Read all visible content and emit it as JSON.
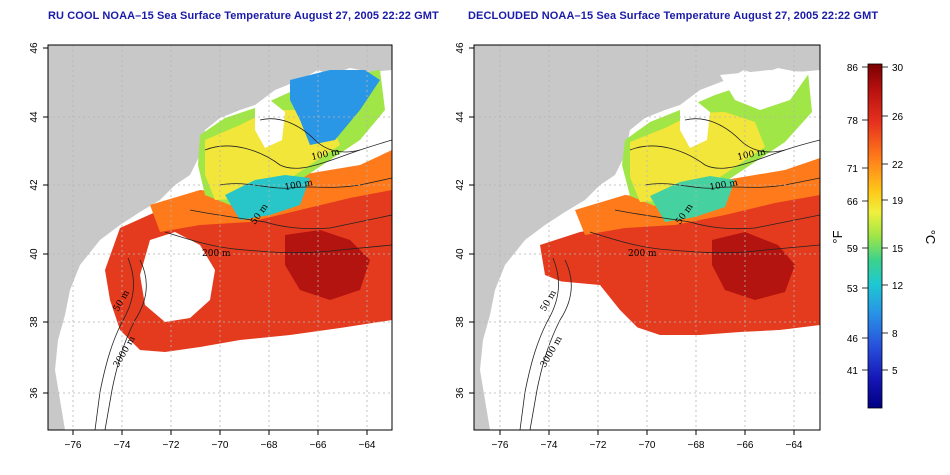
{
  "panels": [
    {
      "id": "left",
      "title": "RU COOL NOAA–15 Sea Surface Temperature August 27, 2005 22:22 GMT",
      "variant": "full"
    },
    {
      "id": "right",
      "title": "DECLOUDED NOAA–15 Sea Surface Temperature August 27, 2005 22:22 GMT",
      "variant": "declouded"
    }
  ],
  "axes": {
    "x_ticks": [
      "−76",
      "−74",
      "−72",
      "−70",
      "−68",
      "−66",
      "−64"
    ],
    "y_ticks": [
      "46",
      "44",
      "42",
      "40",
      "38",
      "36"
    ]
  },
  "contour_labels": [
    "100 m",
    "100 m",
    "50 m",
    "200 m",
    "50 m",
    "3000 m"
  ],
  "colorbar": {
    "unit_f": "°F",
    "unit_c": "°C",
    "f_labels": [
      "86",
      "78",
      "71",
      "66",
      "59",
      "53",
      "46",
      "41"
    ],
    "c_labels": [
      "30",
      "26",
      "22",
      "19",
      "15",
      "12",
      "8",
      "5"
    ],
    "colors": [
      "#8b0000",
      "#cc1a10",
      "#ee3b1c",
      "#ff6a1a",
      "#ffa01a",
      "#ffd21a",
      "#f2f23a",
      "#c8ee3c",
      "#86e04a",
      "#46d27a",
      "#22c6b4",
      "#22aee6",
      "#2c78e6",
      "#2040d2",
      "#1010b4",
      "#00008c"
    ]
  },
  "colors": {
    "land": "#c8c8c8",
    "title": "#1a1aa8",
    "grid": "#b4b4b4"
  }
}
